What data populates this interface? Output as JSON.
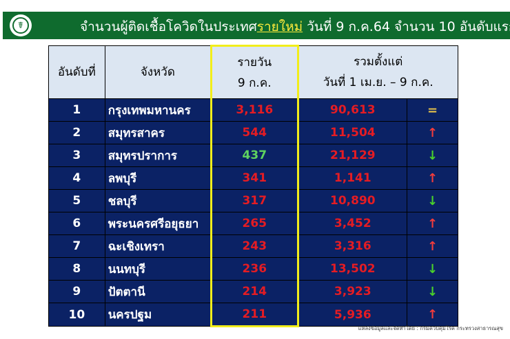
{
  "header": {
    "title_prefix": "จำนวนผู้ติดเชื้อโควิดในประเทศ",
    "title_highlight": "รายใหม่",
    "title_suffix": " วันที่ 9 ก.ค.64 จำนวน 10 อันดับแรก",
    "logo": "ministry-of-public-health-logo"
  },
  "table": {
    "columns": {
      "rank": "อันดับที่",
      "province": "จังหวัด",
      "daily_line1": "รายวัน",
      "daily_line2": "9 ก.ค.",
      "cumulative_line1": "รวมตั้งแต่",
      "cumulative_line2": "วันที่ 1 เม.ย. – 9 ก.ค."
    },
    "rows": [
      {
        "rank": "1",
        "province": "กรุงเทพมหานคร",
        "daily": "3,116",
        "cumulative": "90,613",
        "trend": "equal",
        "daily_color": "red"
      },
      {
        "rank": "2",
        "province": "สมุทรสาคร",
        "daily": "544",
        "cumulative": "11,504",
        "trend": "up",
        "daily_color": "red"
      },
      {
        "rank": "3",
        "province": "สมุทรปราการ",
        "daily": "437",
        "cumulative": "21,129",
        "trend": "down",
        "daily_color": "green"
      },
      {
        "rank": "4",
        "province": "ลพบุรี",
        "daily": "341",
        "cumulative": "1,141",
        "trend": "up",
        "daily_color": "red"
      },
      {
        "rank": "5",
        "province": "ชลบุรี",
        "daily": "317",
        "cumulative": "10,890",
        "trend": "down",
        "daily_color": "red"
      },
      {
        "rank": "6",
        "province": "พระนครศรีอยุธยา",
        "daily": "265",
        "cumulative": "3,452",
        "trend": "up",
        "daily_color": "red"
      },
      {
        "rank": "7",
        "province": "ฉะเชิงเทรา",
        "daily": "243",
        "cumulative": "3,316",
        "trend": "up",
        "daily_color": "red"
      },
      {
        "rank": "8",
        "province": "นนทบุรี",
        "daily": "236",
        "cumulative": "13,502",
        "trend": "down",
        "daily_color": "red"
      },
      {
        "rank": "9",
        "province": "ปัตตานี",
        "daily": "214",
        "cumulative": "3,923",
        "trend": "down",
        "daily_color": "red"
      },
      {
        "rank": "10",
        "province": "นครปฐม",
        "daily": "211",
        "cumulative": "5,936",
        "trend": "up",
        "daily_color": "red"
      }
    ]
  },
  "footer": {
    "source": "แหล่งข้อมูลและจัดทำโดย : กรมควบคุมโรค กระทรวงสาธารณสุข"
  },
  "colors": {
    "banner": "#0f6b2e",
    "table_bg": "#0b2265",
    "header_bg": "#dce6f2",
    "highlight": "#f2ee1a",
    "red": "#e51c23",
    "green": "#5fd35f"
  }
}
